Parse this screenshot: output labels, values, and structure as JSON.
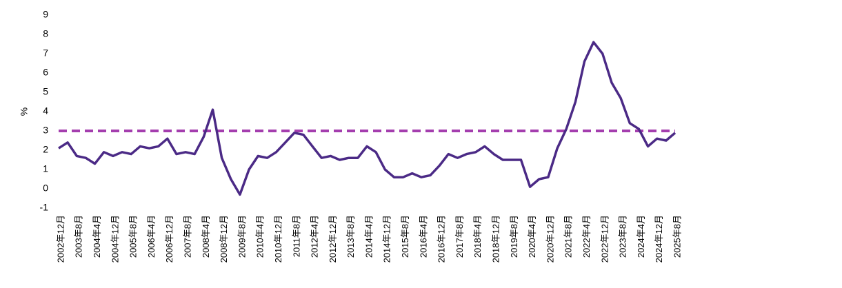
{
  "chart_data": {
    "type": "line",
    "ylabel": "%",
    "categories": [
      "2002年12月",
      null,
      "2003年8月",
      null,
      "2004年4月",
      null,
      "2004年12月",
      null,
      "2005年8月",
      null,
      "2006年4月",
      null,
      "2006年12月",
      null,
      "2007年8月",
      null,
      "2008年4月",
      null,
      "2008年12月",
      null,
      "2009年8月",
      null,
      "2010年4月",
      null,
      "2010年12月",
      null,
      "2011年8月",
      null,
      "2012年4月",
      null,
      "2012年12月",
      null,
      "2013年8月",
      null,
      "2014年4月",
      null,
      "2014年12月",
      null,
      "2015年8月",
      null,
      "2016年4月",
      null,
      "2016年12月",
      null,
      "2017年8月",
      null,
      "2018年4月",
      null,
      "2018年12月",
      null,
      "2019年8月",
      null,
      "2020年4月",
      null,
      "2020年12月",
      null,
      "2021年8月",
      null,
      "2022年4月",
      null,
      "2022年12月",
      null,
      "2023年8月",
      null,
      "2024年4月",
      null,
      "2024年12月",
      null,
      "2025年8月"
    ],
    "values": [
      2.1,
      2.4,
      1.7,
      1.6,
      1.3,
      1.9,
      1.7,
      1.9,
      1.8,
      2.2,
      2.1,
      2.2,
      2.6,
      1.8,
      1.9,
      1.8,
      2.7,
      4.1,
      1.6,
      0.5,
      -0.3,
      1.0,
      1.7,
      1.6,
      1.9,
      2.4,
      2.9,
      2.8,
      2.2,
      1.6,
      1.7,
      1.5,
      1.6,
      1.6,
      2.2,
      1.9,
      1.0,
      0.6,
      0.6,
      0.8,
      0.6,
      0.7,
      1.2,
      1.8,
      1.6,
      1.8,
      1.9,
      2.2,
      1.8,
      1.5,
      1.5,
      1.5,
      0.1,
      0.5,
      0.6,
      2.1,
      3.1,
      4.5,
      6.6,
      7.6,
      7.0,
      5.5,
      4.7,
      3.4,
      3.1,
      2.2,
      2.6,
      2.5,
      2.9
    ],
    "color": "#4b2a86",
    "reference_line": {
      "value": 3,
      "color": "#a43eae",
      "dashed": true
    },
    "ylim": [
      -1,
      9
    ],
    "yticks": [
      -1,
      0,
      1,
      2,
      3,
      4,
      5,
      6,
      7,
      8,
      9
    ]
  }
}
